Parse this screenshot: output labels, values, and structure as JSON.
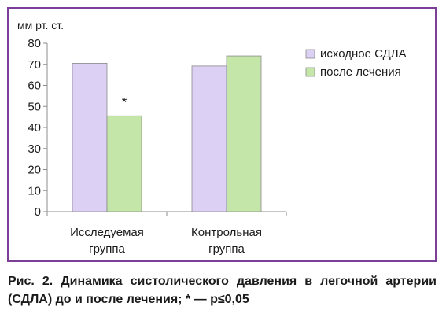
{
  "chart_data": {
    "type": "bar",
    "ylabel": "мм рт. ст.",
    "ylim": [
      0,
      80
    ],
    "yticks": [
      0,
      10,
      20,
      30,
      40,
      50,
      60,
      70,
      80
    ],
    "categories": [
      [
        "Исследуемая",
        "группа"
      ],
      [
        "Контрольная",
        "группа"
      ]
    ],
    "series": [
      {
        "name": "исходное СДЛА",
        "values": [
          70.5,
          69.2
        ],
        "color": "#dcd0f4"
      },
      {
        "name": "после лечения",
        "values": [
          45.5,
          74.0
        ],
        "color": "#c4e6a8"
      }
    ],
    "annotations": [
      {
        "text": "*",
        "category_index": 0,
        "series_index": 1
      }
    ],
    "legend_position": "right",
    "grid": false
  },
  "caption": "Рис. 2. Динамика систолического давления в легочной артерии (СДЛА) до и после лечения; * — p≤0,05"
}
